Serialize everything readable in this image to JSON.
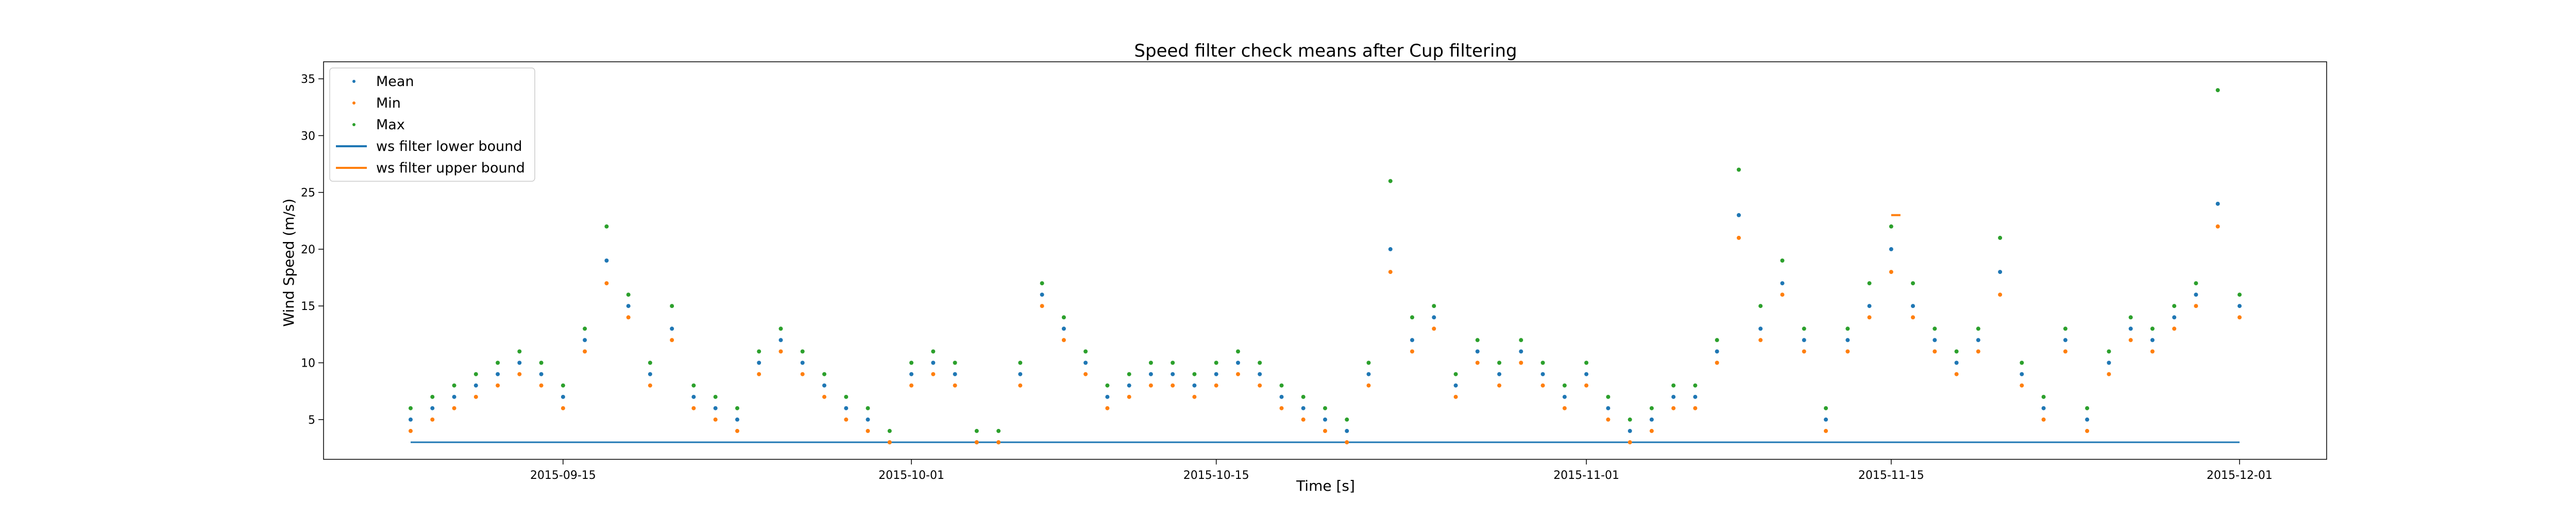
{
  "chart_data": {
    "type": "scatter",
    "title": "Speed filter check means after Cup filtering",
    "xlabel": "Time [s]",
    "ylabel": "Wind Speed (m/s)",
    "x_type": "date",
    "xlim": [
      "2015-09-04",
      "2015-12-05"
    ],
    "ylim": [
      1.5,
      36.5
    ],
    "x_ticks": [
      "2015-09-15",
      "2015-10-01",
      "2015-10-15",
      "2015-11-01",
      "2015-11-15",
      "2015-12-01"
    ],
    "y_ticks": [
      5,
      10,
      15,
      20,
      25,
      30,
      35
    ],
    "grid": false,
    "legend_position": "top-left",
    "legend": [
      "Mean",
      "Min",
      "Max",
      "ws filter lower bound",
      "ws filter upper bound"
    ],
    "colors": {
      "mean": "#1f77b4",
      "min": "#ff7f0e",
      "max": "#2ca02c",
      "lower_bound": "#1f77b4",
      "upper_bound": "#ff7f0e"
    },
    "lower_bound": {
      "value": 3,
      "x": [
        "2015-09-08",
        "2015-12-01"
      ]
    },
    "upper_bound": {
      "segments": [
        {
          "value": 23,
          "x": [
            "2015-11-15",
            "2015-11-15"
          ]
        }
      ]
    },
    "series": [
      {
        "name": "Mean",
        "marker": "point",
        "x": [
          "2015-09-08",
          "2015-09-09",
          "2015-09-10",
          "2015-09-11",
          "2015-09-12",
          "2015-09-13",
          "2015-09-14",
          "2015-09-15",
          "2015-09-16",
          "2015-09-17",
          "2015-09-18",
          "2015-09-19",
          "2015-09-20",
          "2015-09-21",
          "2015-09-22",
          "2015-09-23",
          "2015-09-24",
          "2015-09-25",
          "2015-09-26",
          "2015-09-27",
          "2015-09-28",
          "2015-09-29",
          "2015-09-30",
          "2015-10-01",
          "2015-10-02",
          "2015-10-03",
          "2015-10-04",
          "2015-10-05",
          "2015-10-06",
          "2015-10-07",
          "2015-10-08",
          "2015-10-09",
          "2015-10-10",
          "2015-10-11",
          "2015-10-12",
          "2015-10-13",
          "2015-10-14",
          "2015-10-15",
          "2015-10-16",
          "2015-10-17",
          "2015-10-18",
          "2015-10-19",
          "2015-10-20",
          "2015-10-21",
          "2015-10-22",
          "2015-10-23",
          "2015-10-24",
          "2015-10-25",
          "2015-10-26",
          "2015-10-27",
          "2015-10-28",
          "2015-10-29",
          "2015-10-30",
          "2015-10-31",
          "2015-11-01",
          "2015-11-02",
          "2015-11-03",
          "2015-11-04",
          "2015-11-05",
          "2015-11-06",
          "2015-11-07",
          "2015-11-08",
          "2015-11-09",
          "2015-11-10",
          "2015-11-11",
          "2015-11-12",
          "2015-11-13",
          "2015-11-14",
          "2015-11-15",
          "2015-11-16",
          "2015-11-17",
          "2015-11-18",
          "2015-11-19",
          "2015-11-20",
          "2015-11-21",
          "2015-11-22",
          "2015-11-23",
          "2015-11-24",
          "2015-11-25",
          "2015-11-26",
          "2015-11-27",
          "2015-11-28",
          "2015-11-29",
          "2015-11-30",
          "2015-12-01"
        ],
        "y": [
          5,
          6,
          7,
          8,
          9,
          10,
          9,
          7,
          12,
          19,
          15,
          9,
          13,
          7,
          6,
          5,
          10,
          12,
          10,
          8,
          6,
          5,
          3,
          9,
          10,
          9,
          3,
          3,
          9,
          16,
          13,
          10,
          7,
          8,
          9,
          9,
          8,
          9,
          10,
          9,
          7,
          6,
          5,
          4,
          9,
          20,
          12,
          14,
          8,
          11,
          9,
          11,
          9,
          7,
          9,
          6,
          4,
          5,
          7,
          7,
          11,
          23,
          13,
          17,
          12,
          5,
          12,
          15,
          20,
          15,
          12,
          10,
          12,
          18,
          9,
          6,
          12,
          5,
          10,
          13,
          12,
          14,
          16,
          24,
          15
        ]
      },
      {
        "name": "Min",
        "marker": "point",
        "x": [
          "2015-09-08",
          "2015-09-09",
          "2015-09-10",
          "2015-09-11",
          "2015-09-12",
          "2015-09-13",
          "2015-09-14",
          "2015-09-15",
          "2015-09-16",
          "2015-09-17",
          "2015-09-18",
          "2015-09-19",
          "2015-09-20",
          "2015-09-21",
          "2015-09-22",
          "2015-09-23",
          "2015-09-24",
          "2015-09-25",
          "2015-09-26",
          "2015-09-27",
          "2015-09-28",
          "2015-09-29",
          "2015-09-30",
          "2015-10-01",
          "2015-10-02",
          "2015-10-03",
          "2015-10-04",
          "2015-10-05",
          "2015-10-06",
          "2015-10-07",
          "2015-10-08",
          "2015-10-09",
          "2015-10-10",
          "2015-10-11",
          "2015-10-12",
          "2015-10-13",
          "2015-10-14",
          "2015-10-15",
          "2015-10-16",
          "2015-10-17",
          "2015-10-18",
          "2015-10-19",
          "2015-10-20",
          "2015-10-21",
          "2015-10-22",
          "2015-10-23",
          "2015-10-24",
          "2015-10-25",
          "2015-10-26",
          "2015-10-27",
          "2015-10-28",
          "2015-10-29",
          "2015-10-30",
          "2015-10-31",
          "2015-11-01",
          "2015-11-02",
          "2015-11-03",
          "2015-11-04",
          "2015-11-05",
          "2015-11-06",
          "2015-11-07",
          "2015-11-08",
          "2015-11-09",
          "2015-11-10",
          "2015-11-11",
          "2015-11-12",
          "2015-11-13",
          "2015-11-14",
          "2015-11-15",
          "2015-11-16",
          "2015-11-17",
          "2015-11-18",
          "2015-11-19",
          "2015-11-20",
          "2015-11-21",
          "2015-11-22",
          "2015-11-23",
          "2015-11-24",
          "2015-11-25",
          "2015-11-26",
          "2015-11-27",
          "2015-11-28",
          "2015-11-29",
          "2015-11-30",
          "2015-12-01"
        ],
        "y": [
          4,
          5,
          6,
          7,
          8,
          9,
          8,
          6,
          11,
          17,
          14,
          8,
          12,
          6,
          5,
          4,
          9,
          11,
          9,
          7,
          5,
          4,
          3,
          8,
          9,
          8,
          3,
          3,
          8,
          15,
          12,
          9,
          6,
          7,
          8,
          8,
          7,
          8,
          9,
          8,
          6,
          5,
          4,
          3,
          8,
          18,
          11,
          13,
          7,
          10,
          8,
          10,
          8,
          6,
          8,
          5,
          3,
          4,
          6,
          6,
          10,
          21,
          12,
          16,
          11,
          4,
          11,
          14,
          18,
          14,
          11,
          9,
          11,
          16,
          8,
          5,
          11,
          4,
          9,
          12,
          11,
          13,
          15,
          22,
          14
        ]
      },
      {
        "name": "Max",
        "marker": "point",
        "x": [
          "2015-09-08",
          "2015-09-09",
          "2015-09-10",
          "2015-09-11",
          "2015-09-12",
          "2015-09-13",
          "2015-09-14",
          "2015-09-15",
          "2015-09-16",
          "2015-09-17",
          "2015-09-18",
          "2015-09-19",
          "2015-09-20",
          "2015-09-21",
          "2015-09-22",
          "2015-09-23",
          "2015-09-24",
          "2015-09-25",
          "2015-09-26",
          "2015-09-27",
          "2015-09-28",
          "2015-09-29",
          "2015-09-30",
          "2015-10-01",
          "2015-10-02",
          "2015-10-03",
          "2015-10-04",
          "2015-10-05",
          "2015-10-06",
          "2015-10-07",
          "2015-10-08",
          "2015-10-09",
          "2015-10-10",
          "2015-10-11",
          "2015-10-12",
          "2015-10-13",
          "2015-10-14",
          "2015-10-15",
          "2015-10-16",
          "2015-10-17",
          "2015-10-18",
          "2015-10-19",
          "2015-10-20",
          "2015-10-21",
          "2015-10-22",
          "2015-10-23",
          "2015-10-24",
          "2015-10-25",
          "2015-10-26",
          "2015-10-27",
          "2015-10-28",
          "2015-10-29",
          "2015-10-30",
          "2015-10-31",
          "2015-11-01",
          "2015-11-02",
          "2015-11-03",
          "2015-11-04",
          "2015-11-05",
          "2015-11-06",
          "2015-11-07",
          "2015-11-08",
          "2015-11-09",
          "2015-11-10",
          "2015-11-11",
          "2015-11-12",
          "2015-11-13",
          "2015-11-14",
          "2015-11-15",
          "2015-11-16",
          "2015-11-17",
          "2015-11-18",
          "2015-11-19",
          "2015-11-20",
          "2015-11-21",
          "2015-11-22",
          "2015-11-23",
          "2015-11-24",
          "2015-11-25",
          "2015-11-26",
          "2015-11-27",
          "2015-11-28",
          "2015-11-29",
          "2015-11-30",
          "2015-12-01"
        ],
        "y": [
          6,
          7,
          8,
          9,
          10,
          11,
          10,
          8,
          13,
          22,
          16,
          10,
          15,
          8,
          7,
          6,
          11,
          13,
          11,
          9,
          7,
          6,
          4,
          10,
          11,
          10,
          4,
          4,
          10,
          17,
          14,
          11,
          8,
          9,
          10,
          10,
          9,
          10,
          11,
          10,
          8,
          7,
          6,
          5,
          10,
          26,
          14,
          15,
          9,
          12,
          10,
          12,
          10,
          8,
          10,
          7,
          5,
          6,
          8,
          8,
          12,
          27,
          15,
          19,
          13,
          6,
          13,
          17,
          22,
          17,
          13,
          11,
          13,
          21,
          10,
          7,
          13,
          6,
          11,
          14,
          13,
          15,
          17,
          34,
          16
        ]
      }
    ]
  }
}
